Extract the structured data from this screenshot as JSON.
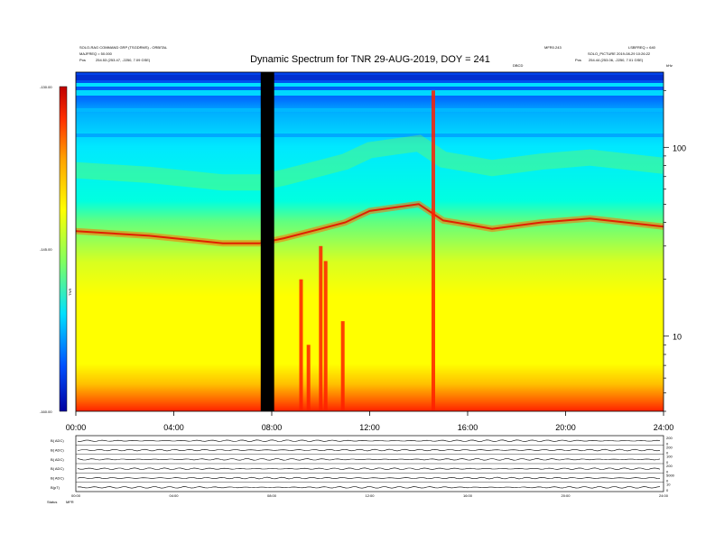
{
  "header": {
    "top_left_line1": "SOLO-RAG COMMAND GRP (TSGDRMS) - ORBITAL",
    "top_left_line2": "MAJFREQ = 50.000",
    "pos_left_label": "Pos",
    "pos_left_value": "254.53 (253.47, -2250, 7.09 GSE)",
    "top_right_id": "MFR0.243",
    "top_right_version": "LSBFREQ = 640",
    "top_right_line2": "SOLO_PICTURE 2019-08-29 10:26:22",
    "pos_right_label": "Pos",
    "pos_right_value": "254.44 (253.06, -2250, 7.01 GSE)",
    "units_mark": "kHz",
    "sub_mark": "DBCD"
  },
  "chart_data": {
    "type": "heatmap",
    "title": "Dynamic Spectrum for TNR 29-AUG-2019, DOY = 241",
    "x_ticks": [
      "00:00",
      "04:00",
      "08:00",
      "12:00",
      "16:00",
      "20:00",
      "24:00"
    ],
    "xlim_hours": [
      0,
      24
    ],
    "y_scale": "log",
    "y_units": "kHz",
    "y_ticks": [
      10,
      100
    ],
    "ylim_khz": [
      4,
      250
    ],
    "colorbar": {
      "ticks": [
        "-130.00",
        "-145.00",
        "-160.00"
      ],
      "range": [
        -160,
        -130
      ],
      "colors": [
        "#0000a0",
        "#0050ff",
        "#00e0ff",
        "#80ff60",
        "#ffff00",
        "#ffa000",
        "#ff3000",
        "#c00000"
      ],
      "label": "TNR"
    },
    "gap": {
      "start_hour": 7.55,
      "end_hour": 8.1
    },
    "plasma_line": [
      {
        "hour": 0.0,
        "freq_khz": 36
      },
      {
        "hour": 3.0,
        "freq_khz": 34
      },
      {
        "hour": 6.0,
        "freq_khz": 31
      },
      {
        "hour": 7.5,
        "freq_khz": 31
      },
      {
        "hour": 8.5,
        "freq_khz": 33
      },
      {
        "hour": 10.0,
        "freq_khz": 37
      },
      {
        "hour": 11.0,
        "freq_khz": 40
      },
      {
        "hour": 12.0,
        "freq_khz": 46
      },
      {
        "hour": 13.0,
        "freq_khz": 48
      },
      {
        "hour": 14.0,
        "freq_khz": 50
      },
      {
        "hour": 15.0,
        "freq_khz": 41
      },
      {
        "hour": 16.0,
        "freq_khz": 39
      },
      {
        "hour": 17.0,
        "freq_khz": 37
      },
      {
        "hour": 19.0,
        "freq_khz": 40
      },
      {
        "hour": 21.0,
        "freq_khz": 42
      },
      {
        "hour": 24.0,
        "freq_khz": 38
      }
    ],
    "bursts": [
      {
        "hour": 9.2,
        "top_khz": 20
      },
      {
        "hour": 9.5,
        "top_khz": 9
      },
      {
        "hour": 10.0,
        "top_khz": 30
      },
      {
        "hour": 10.2,
        "top_khz": 25
      },
      {
        "hour": 10.9,
        "top_khz": 12
      },
      {
        "hour": 14.6,
        "top_khz": 200
      }
    ]
  },
  "bottom_panel": {
    "rows": [
      {
        "label": "B( ADC)",
        "right_ticks": [
          "200",
          "0"
        ]
      },
      {
        "label": "B( ADC)",
        "right_ticks": [
          "200",
          "0"
        ]
      },
      {
        "label": "B( ADC)",
        "right_ticks": [
          "100",
          "0"
        ]
      },
      {
        "label": "B( ADC)",
        "right_ticks": [
          "200",
          "0"
        ]
      },
      {
        "label": "B( ADC)",
        "right_ticks": [
          "5000",
          "0"
        ]
      },
      {
        "label": "B(pT)",
        "right_ticks": [
          "10",
          "0"
        ]
      }
    ],
    "x_ticks": [
      "00:00",
      "04:00",
      "08:00",
      "12:00",
      "16:00",
      "20:00",
      "24:00"
    ],
    "status_label": "Status",
    "status_value": "MFR"
  }
}
